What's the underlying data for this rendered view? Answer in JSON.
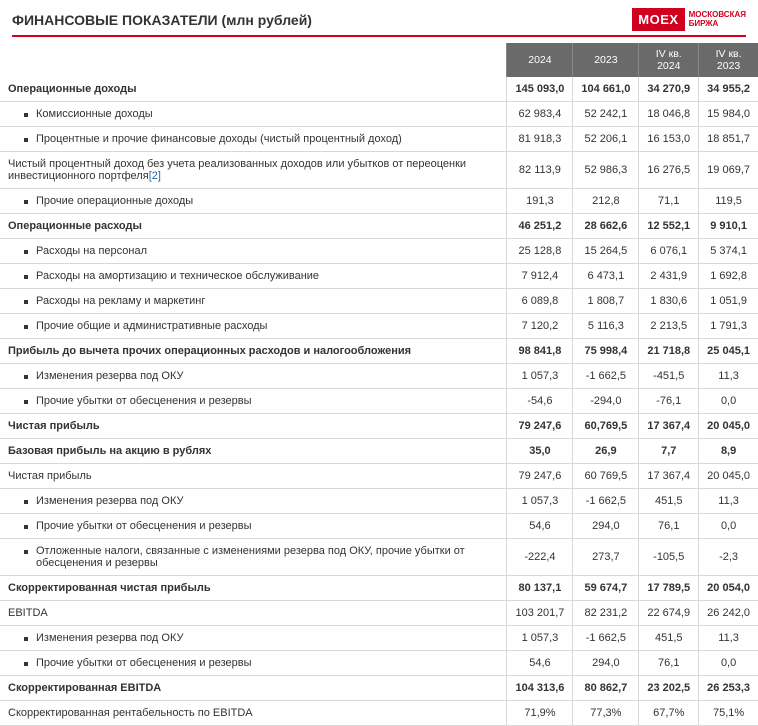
{
  "title": "ФИНАНСОВЫЕ ПОКАЗАТЕЛИ (млн рублей)",
  "logo": {
    "box": "MOEX",
    "line1": "МОСКОВСКАЯ",
    "line2": "БИРЖА"
  },
  "columns": [
    "2024",
    "2023",
    "IV кв. 2024",
    "IV кв. 2023"
  ],
  "footnote_marker": "[2]",
  "rows": [
    {
      "label": "Операционные доходы",
      "bold": true,
      "vals": [
        "145 093,0",
        "104 661,0",
        "34 270,9",
        "34 955,2"
      ]
    },
    {
      "label": "Комиссионные доходы",
      "bullet": true,
      "vals": [
        "62 983,4",
        "52 242,1",
        "18 046,8",
        "15 984,0"
      ]
    },
    {
      "label": "Процентные и прочие финансовые доходы (чистый процентный доход)",
      "bullet": true,
      "vals": [
        "81 918,3",
        "52 206,1",
        "16 153,0",
        "18 851,7"
      ]
    },
    {
      "label": "Чистый процентный доход без учета реализованных доходов или убытков от переоценки инвестиционного портфеля",
      "footnote": true,
      "vals": [
        "82 113,9",
        "52 986,3",
        "16 276,5",
        "19 069,7"
      ]
    },
    {
      "label": "Прочие операционные доходы",
      "bullet": true,
      "vals": [
        "191,3",
        "212,8",
        "71,1",
        "119,5"
      ]
    },
    {
      "label": "Операционные расходы",
      "bold": true,
      "vals": [
        "46 251,2",
        "28 662,6",
        "12 552,1",
        "9 910,1"
      ]
    },
    {
      "label": "Расходы на персонал",
      "bullet": true,
      "vals": [
        "25 128,8",
        "15 264,5",
        "6 076,1",
        "5 374,1"
      ]
    },
    {
      "label": "Расходы на амортизацию и техническое обслуживание",
      "bullet": true,
      "vals": [
        "7 912,4",
        "6 473,1",
        "2 431,9",
        "1 692,8"
      ]
    },
    {
      "label": "Расходы на рекламу и маркетинг",
      "bullet": true,
      "vals": [
        "6 089,8",
        "1 808,7",
        "1 830,6",
        "1 051,9"
      ]
    },
    {
      "label": "Прочие общие и административные расходы",
      "bullet": true,
      "vals": [
        "7 120,2",
        "5 116,3",
        "2 213,5",
        "1 791,3"
      ]
    },
    {
      "label": "Прибыль до вычета прочих операционных расходов и налогообложения",
      "bold": true,
      "vals": [
        "98 841,8",
        "75 998,4",
        "21 718,8",
        "25 045,1"
      ]
    },
    {
      "label": "Изменения резерва под ОКУ",
      "bullet": true,
      "vals": [
        "1 057,3",
        "-1 662,5",
        "-451,5",
        "11,3"
      ]
    },
    {
      "label": "Прочие убытки от обесценения и резервы",
      "bullet": true,
      "vals": [
        "-54,6",
        "-294,0",
        "-76,1",
        "0,0"
      ]
    },
    {
      "label": "Чистая прибыль",
      "bold": true,
      "vals": [
        "79 247,6",
        "60,769,5",
        "17 367,4",
        "20 045,0"
      ]
    },
    {
      "label": "Базовая прибыль на акцию в рублях",
      "bold": true,
      "vals": [
        "35,0",
        "26,9",
        "7,7",
        "8,9"
      ]
    },
    {
      "label": "Чистая прибыль",
      "vals": [
        "79 247,6",
        "60 769,5",
        "17 367,4",
        "20 045,0"
      ]
    },
    {
      "label": "Изменения резерва под ОКУ",
      "bullet": true,
      "vals": [
        "1 057,3",
        "-1 662,5",
        "451,5",
        "11,3"
      ]
    },
    {
      "label": "Прочие убытки от обесценения и резервы",
      "bullet": true,
      "vals": [
        "54,6",
        "294,0",
        "76,1",
        "0,0"
      ]
    },
    {
      "label": "Отложенные налоги, связанные с изменениями резерва под ОКУ, прочие убытки от обесценения и резервы",
      "bullet": true,
      "vals": [
        "-222,4",
        "273,7",
        "-105,5",
        "-2,3"
      ]
    },
    {
      "label": "Скорректированная чистая прибыль",
      "bold": true,
      "vals": [
        "80 137,1",
        "59 674,7",
        "17 789,5",
        "20 054,0"
      ]
    },
    {
      "label": "EBITDA",
      "vals": [
        "103 201,7",
        "82 231,2",
        "22 674,9",
        "26 242,0"
      ]
    },
    {
      "label": "Изменения резерва под ОКУ",
      "bullet": true,
      "vals": [
        "1 057,3",
        "-1 662,5",
        "451,5",
        "11,3"
      ]
    },
    {
      "label": "Прочие убытки от обесценения и резервы",
      "bullet": true,
      "vals": [
        "54,6",
        "294,0",
        "76,1",
        "0,0"
      ]
    },
    {
      "label": "Скорректированная EBITDA",
      "bold": true,
      "vals": [
        "104 313,6",
        "80 862,7",
        "23 202,5",
        "26 253,3"
      ]
    },
    {
      "label": "Скорректированная рентабельность по EBITDA",
      "vals": [
        "71,9%",
        "77,3%",
        "67,7%",
        "75,1%"
      ]
    }
  ]
}
